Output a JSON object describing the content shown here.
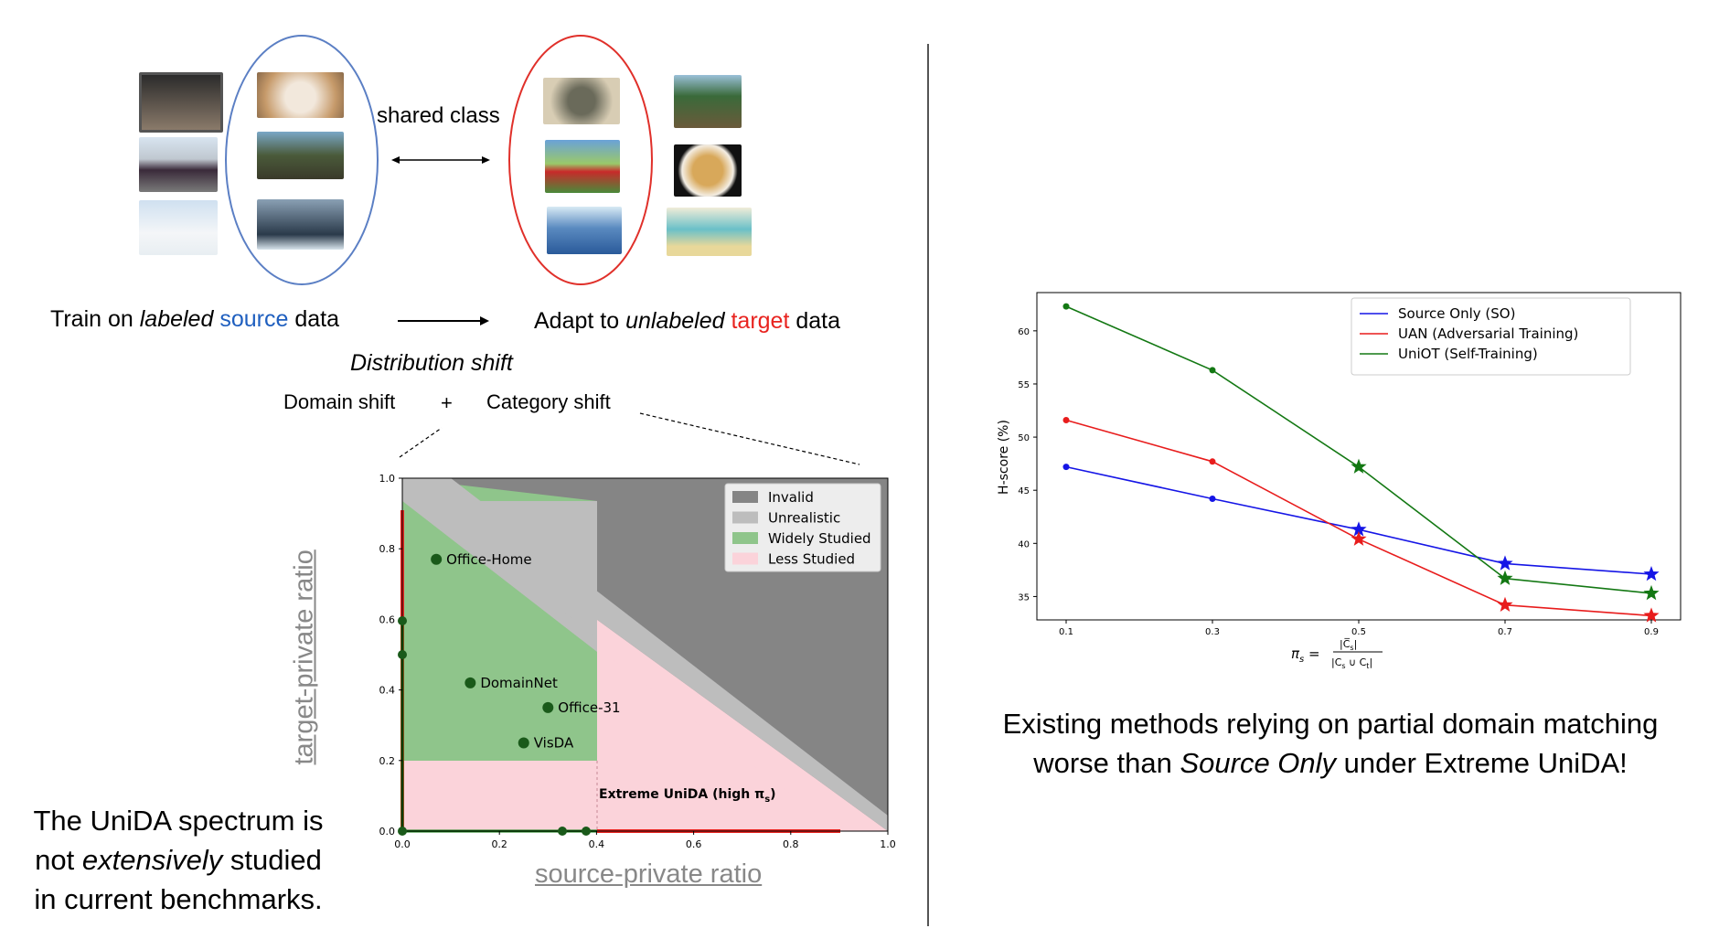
{
  "top": {
    "shared_class": "shared class",
    "train": {
      "pre": "Train on ",
      "italic": "labeled",
      "space": " ",
      "colored": "source",
      "post": " data"
    },
    "adapt": {
      "pre": "Adapt to ",
      "italic": "unlabeled",
      "space": " ",
      "colored": "target",
      "post": " data"
    },
    "distribution_shift": "Distribution shift",
    "domain_shift": "Domain shift",
    "plus": "+",
    "category_shift": "Category shift"
  },
  "colors": {
    "source": "#1f5fbf",
    "target": "#e8231f",
    "left_ellipse": "#5b7fc4",
    "right_ellipse": "#e0302a"
  },
  "spectrum": {
    "xlabel": "source-private ratio",
    "ylabel": "target-private ratio",
    "legend": [
      "Invalid",
      "Unrealistic",
      "Widely Studied",
      "Less Studied"
    ],
    "region_colors": [
      "#858585",
      "#bdbdbd",
      "#8fc58b",
      "#fbd3da"
    ],
    "x_ticks": [
      "0.0",
      "0.2",
      "0.4",
      "0.6",
      "0.8",
      "1.0"
    ],
    "y_ticks": [
      "0.0",
      "0.2",
      "0.4",
      "0.6",
      "0.8",
      "1.0"
    ],
    "points": [
      {
        "label": "Office-Home",
        "x": 0.07,
        "y": 0.77
      },
      {
        "label": "DomainNet",
        "x": 0.14,
        "y": 0.42
      },
      {
        "label": "Office-31",
        "x": 0.3,
        "y": 0.35
      },
      {
        "label": "VisDA",
        "x": 0.25,
        "y": 0.25
      }
    ],
    "extreme_label": "Extreme UniDA (high π",
    "extreme_sub": "s",
    "extreme_close": ")"
  },
  "chart_data": {
    "type": "line",
    "x": [
      0.1,
      0.3,
      0.5,
      0.7,
      0.9
    ],
    "x_ticks": [
      "0.1",
      "0.3",
      "0.5",
      "0.7",
      "0.9"
    ],
    "ylabel": "H-score (%)",
    "y_ticks": [
      "35",
      "40",
      "45",
      "50",
      "55",
      "60"
    ],
    "ylim": [
      32.8,
      63.6
    ],
    "xlim": [
      0.06,
      0.94
    ],
    "legend_position": "top-right",
    "grid": false,
    "star_from_x": 0.5,
    "series": [
      {
        "name": "Source Only (SO)",
        "color": "#1515e6",
        "values": [
          47.2,
          44.2,
          41.3,
          38.1,
          37.1
        ]
      },
      {
        "name": "UAN (Adversarial Training)",
        "color": "#e81c1c",
        "values": [
          51.6,
          47.7,
          40.4,
          34.2,
          33.2
        ]
      },
      {
        "name": "UniOT (Self-Training)",
        "color": "#137813",
        "values": [
          62.3,
          56.3,
          47.2,
          36.7,
          35.3
        ]
      }
    ]
  },
  "xlabel_formula": {
    "pi": "π",
    "sub": "s",
    "eq": " = ",
    "num": "|C̅",
    "num_sub": "s",
    "num_close": "|",
    "den": "|C",
    "den_s": "s",
    "den_mid": " ∪ C",
    "den_t": "t",
    "den_close": "|"
  },
  "bottom_left": {
    "line1": "The UniDA spectrum is",
    "line2_pre": "not ",
    "line2_italic": "extensively",
    "line2_post": " studied",
    "line3": "in current benchmarks."
  },
  "bottom_right": {
    "line1": "Existing methods relying on partial domain matching",
    "line2_pre": "worse than ",
    "line2_italic": "Source Only",
    "line2_post": " under Extreme UniDA!"
  }
}
